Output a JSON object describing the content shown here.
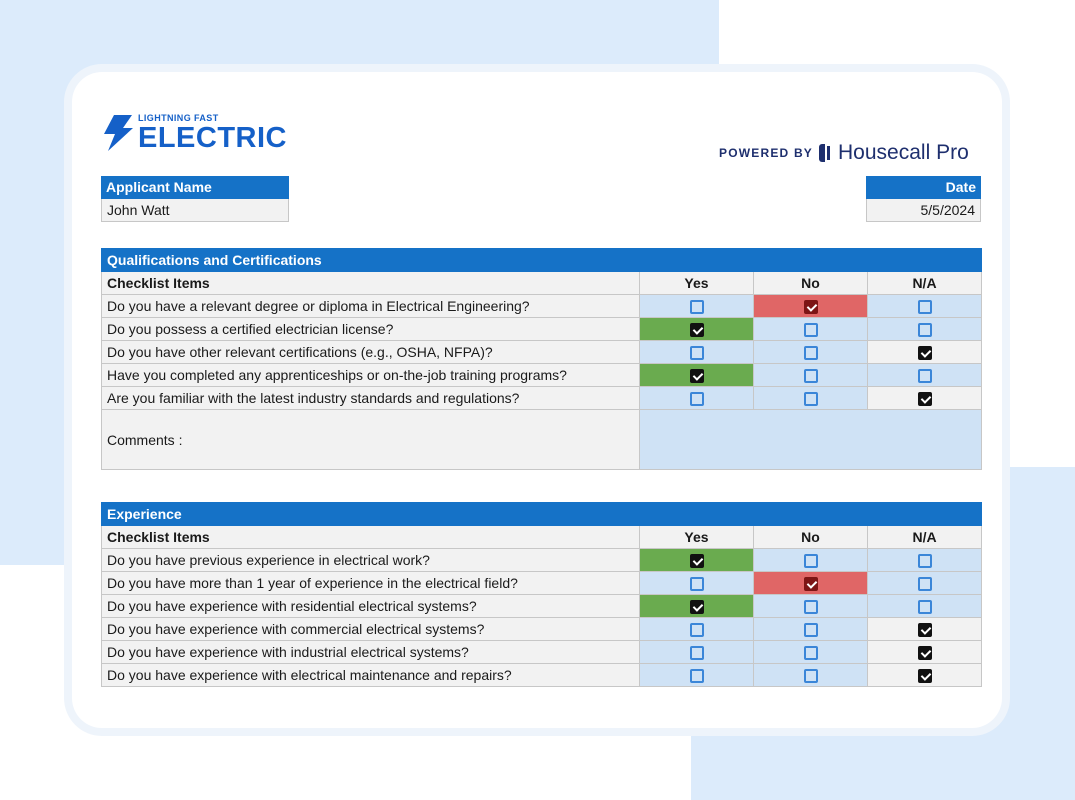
{
  "logo": {
    "tagline": "LIGHTNING FAST",
    "name": "ELECTRIC"
  },
  "powered": {
    "label": "POWERED BY",
    "brand": "Housecall Pro"
  },
  "applicant": {
    "label": "Applicant Name",
    "value": "John Watt"
  },
  "date": {
    "label": "Date",
    "value": "5/5/2024"
  },
  "colors": {
    "header_blue": "#1572c7",
    "yes_green": "#6aab4f",
    "no_red": "#e06666",
    "cell_blue": "#cfe2f5"
  },
  "qualifications": {
    "title": "Qualifications and Certifications",
    "col_items": "Checklist Items",
    "col_yes": "Yes",
    "col_no": "No",
    "col_na": "N/A",
    "rows": [
      {
        "q": "Do you have a relevant degree or diploma in Electrical Engineering?",
        "answer": "no"
      },
      {
        "q": "Do you possess a certified electrician license?",
        "answer": "yes"
      },
      {
        "q": "Do you have other relevant certifications (e.g., OSHA, NFPA)?",
        "answer": "na"
      },
      {
        "q": "Have you completed any apprenticeships or on-the-job training programs?",
        "answer": "yes"
      },
      {
        "q": "Are you familiar with the latest industry standards and regulations?",
        "answer": "na"
      }
    ],
    "comments_label": "Comments :",
    "comments_value": ""
  },
  "experience": {
    "title": "Experience",
    "col_items": "Checklist Items",
    "col_yes": "Yes",
    "col_no": "No",
    "col_na": "N/A",
    "rows": [
      {
        "q": "Do you have previous experience in electrical work?",
        "answer": "yes"
      },
      {
        "q": "Do you have more than 1 year of experience in the electrical field?",
        "answer": "no"
      },
      {
        "q": "Do you have experience with residential electrical systems?",
        "answer": "yes"
      },
      {
        "q": "Do you have experience with commercial electrical systems?",
        "answer": "na"
      },
      {
        "q": "Do you have experience with industrial electrical systems?",
        "answer": "na"
      },
      {
        "q": "Do you have experience with electrical maintenance and repairs?",
        "answer": "na"
      }
    ]
  }
}
